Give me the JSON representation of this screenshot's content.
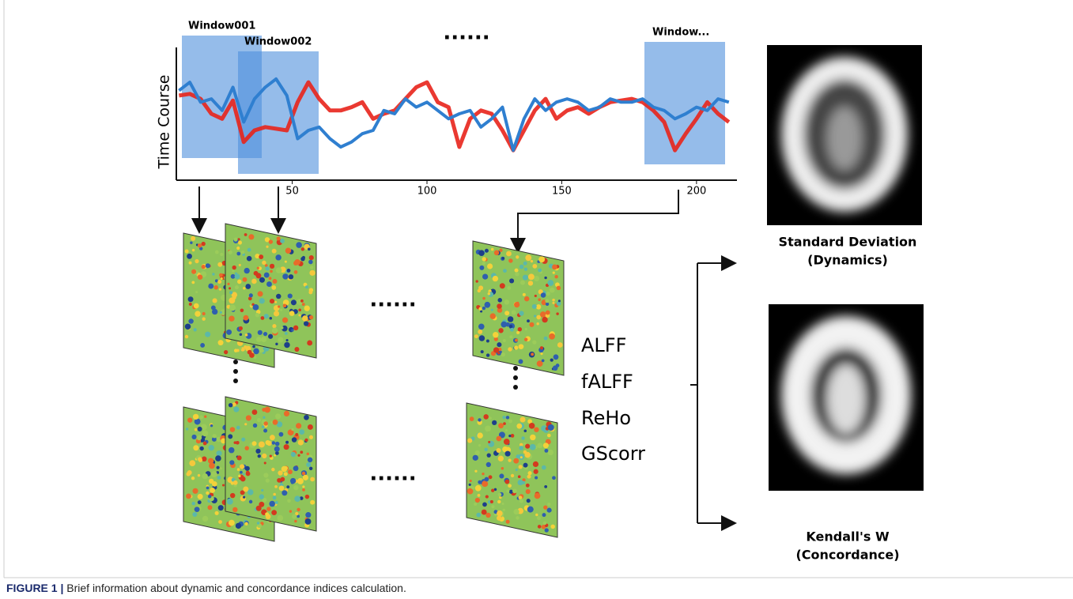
{
  "chart_data": {
    "type": "line",
    "ylabel": "Time Course",
    "x": [
      8,
      12,
      16,
      20,
      24,
      28,
      32,
      36,
      40,
      44,
      48,
      52,
      56,
      60,
      64,
      68,
      72,
      76,
      80,
      84,
      88,
      92,
      96,
      100,
      104,
      108,
      112,
      116,
      120,
      124,
      128,
      132,
      136,
      140,
      144,
      148,
      152,
      156,
      160,
      164,
      168,
      172,
      176,
      180,
      184,
      188,
      192,
      196,
      200,
      204,
      208,
      212
    ],
    "series": [
      {
        "color": "#e8231b",
        "values": [
          1.1,
          1.2,
          0.9,
          0,
          -0.3,
          0.8,
          -1.7,
          -1,
          -0.8,
          -0.9,
          -1,
          0.7,
          1.9,
          0.9,
          0.2,
          0.2,
          0.4,
          0.7,
          -0.3,
          0,
          0.2,
          0.9,
          1.6,
          1.9,
          0.7,
          0.4,
          -2,
          -0.3,
          0.2,
          0,
          -1,
          -2.2,
          -1,
          0.2,
          0.9,
          -0.3,
          0.2,
          0.4,
          0,
          0.4,
          0.7,
          0.8,
          0.9,
          0.7,
          0.2,
          -0.5,
          -2.2,
          -1.2,
          -0.3,
          0.7,
          0,
          -0.5
        ]
      },
      {
        "color": "#2f7fd0",
        "values": [
          1.4,
          1.9,
          0.7,
          0.9,
          0.2,
          1.6,
          -0.5,
          0.9,
          1.6,
          2.1,
          1.1,
          -1.5,
          -1,
          -0.8,
          -1.5,
          -2,
          -1.7,
          -1.2,
          -1,
          0.2,
          0,
          0.9,
          0.4,
          0.7,
          0.2,
          -0.3,
          0,
          0.2,
          -0.8,
          -0.3,
          0.4,
          -2.2,
          -0.3,
          0.9,
          0.2,
          0.7,
          0.9,
          0.7,
          0.2,
          0.4,
          0.9,
          0.7,
          0.7,
          0.9,
          0.4,
          0.2,
          -0.3,
          0,
          0.4,
          0.2,
          0.9,
          0.7
        ]
      }
    ],
    "xlim": [
      7,
      215
    ],
    "ylim": [
      -4,
      4
    ],
    "xticks": [
      50,
      100,
      150,
      200
    ]
  },
  "windows": [
    "Window001",
    "Window002",
    "Window..."
  ],
  "ellipsis": "......",
  "indices": [
    "ALFF",
    "fALFF",
    "ReHo",
    "GScorr"
  ],
  "outputs": [
    [
      "Standard Deviation",
      "(Dynamics)"
    ],
    [
      "Kendall's W",
      "(Concordance)"
    ]
  ],
  "caption": {
    "label": "FIGURE 1 |",
    "text": "Brief information about dynamic and concordance indices calculation."
  }
}
